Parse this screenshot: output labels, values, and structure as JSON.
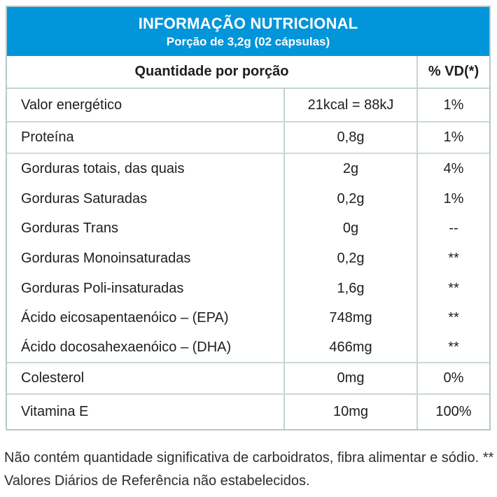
{
  "header": {
    "title": "INFORMAÇÃO NUTRICIONAL",
    "subtitle": "Porção de 3,2g (02 cápsulas)"
  },
  "columns": {
    "quantity": "Quantidade por porção",
    "dv": "% VD(*)"
  },
  "rows": [
    {
      "label": "Valor energético",
      "amount": "21kcal = 88kJ",
      "dv": "1%"
    },
    {
      "label": "Proteína",
      "amount": "0,8g",
      "dv": "1%"
    },
    {
      "label": "Gorduras totais, das quais",
      "amount": "2g",
      "dv": "4%"
    },
    {
      "label": "Gorduras Saturadas",
      "amount": "0,2g",
      "dv": "1%"
    },
    {
      "label": "Gorduras Trans",
      "amount": "0g",
      "dv": "--"
    },
    {
      "label": "Gorduras Monoinsaturadas",
      "amount": "0,2g",
      "dv": "**"
    },
    {
      "label": "Gorduras Poli-insaturadas",
      "amount": "1,6g",
      "dv": "**"
    },
    {
      "label": "Ácido eicosapentaenóico – (EPA)",
      "amount": "748mg",
      "dv": "**"
    },
    {
      "label": "Ácido docosahexaenóico – (DHA)",
      "amount": "466mg",
      "dv": "**"
    },
    {
      "label": "Colesterol",
      "amount": "0mg",
      "dv": "0%"
    },
    {
      "label": "Vitamina E",
      "amount": "10mg",
      "dv": "100%"
    }
  ],
  "footnote": {
    "line1": "Não contém quantidade significativa de carboidratos, fibra alimentar e sódio. **",
    "line2": "Valores Diários de Referência não estabelecidos."
  },
  "colors": {
    "header_bg": "#0295d9",
    "border": "#c3d2d4",
    "text": "#1e1e1e"
  }
}
